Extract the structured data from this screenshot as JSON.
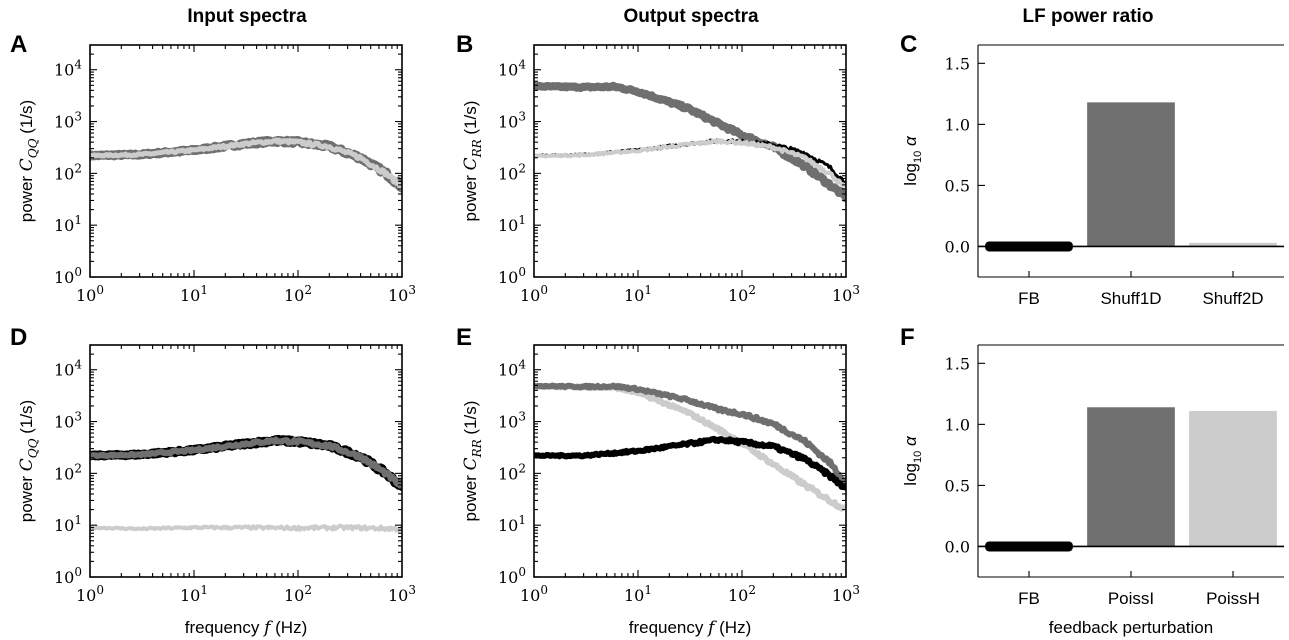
{
  "column_titles": [
    "Input spectra",
    "Output spectra",
    "LF power ratio"
  ],
  "colors": {
    "black": "#000000",
    "dark_gray": "#6f6f6f",
    "light_gray": "#cccccc"
  },
  "chart_data": [
    {
      "panel": "A",
      "type": "line",
      "xscale": "log",
      "yscale": "log",
      "xlim": [
        1,
        1000
      ],
      "ylim": [
        1,
        30000
      ],
      "xticks": [
        "10^0",
        "10^1",
        "10^2",
        "10^3"
      ],
      "yticks": [
        "10^0",
        "10^1",
        "10^2",
        "10^3",
        "10^4"
      ],
      "ylabel": "power C_QQ (1/s)",
      "xlabel": "",
      "series": [
        {
          "color": "#6f6f6f",
          "width": 9,
          "x": [
            1,
            3,
            10,
            30,
            60,
            100,
            200,
            400,
            700,
            1000
          ],
          "y": [
            220,
            230,
            280,
            370,
            420,
            400,
            330,
            200,
            100,
            55
          ]
        },
        {
          "color": "#cccccc",
          "width": 5,
          "x": [
            1,
            3,
            10,
            30,
            60,
            100,
            200,
            400,
            700,
            1000
          ],
          "y": [
            220,
            230,
            280,
            370,
            420,
            400,
            330,
            200,
            100,
            55
          ]
        }
      ]
    },
    {
      "panel": "B",
      "type": "line",
      "xscale": "log",
      "yscale": "log",
      "xlim": [
        1,
        1000
      ],
      "ylim": [
        1,
        30000
      ],
      "xticks": [
        "10^0",
        "10^1",
        "10^2",
        "10^3"
      ],
      "yticks": [
        "10^0",
        "10^1",
        "10^2",
        "10^3",
        "10^4"
      ],
      "ylabel": "power C_RR (1/s)",
      "xlabel": "",
      "series": [
        {
          "color": "#6f6f6f",
          "width": 8,
          "x": [
            1,
            3,
            6,
            10,
            30,
            60,
            100,
            200,
            400,
            700,
            1000
          ],
          "y": [
            4800,
            4600,
            4700,
            3800,
            1800,
            900,
            550,
            320,
            140,
            60,
            35
          ]
        },
        {
          "color": "#000000",
          "width": 3,
          "x": [
            1,
            3,
            10,
            30,
            60,
            100,
            200,
            400,
            700,
            1000
          ],
          "y": [
            220,
            230,
            280,
            370,
            430,
            410,
            360,
            250,
            130,
            65
          ]
        },
        {
          "color": "#cccccc",
          "width": 4,
          "x": [
            1,
            3,
            10,
            30,
            60,
            100,
            200,
            400,
            700,
            1000
          ],
          "y": [
            215,
            225,
            275,
            360,
            420,
            390,
            320,
            200,
            100,
            50
          ]
        }
      ]
    },
    {
      "panel": "C",
      "type": "bar",
      "ylim": [
        -0.25,
        1.65
      ],
      "yticks": [
        0.0,
        0.5,
        1.0,
        1.5
      ],
      "yticklabels": [
        "0.0",
        "0.5",
        "1.0",
        "1.5"
      ],
      "ylabel": "log10 α",
      "xlabel": "",
      "categories": [
        "FB",
        "Shuff1D",
        "Shuff2D"
      ],
      "values": [
        0.0,
        1.18,
        0.03
      ],
      "colors": [
        "#000000",
        "#6f6f6f",
        "#cccccc"
      ]
    },
    {
      "panel": "D",
      "type": "line",
      "xscale": "log",
      "yscale": "log",
      "xlim": [
        1,
        1000
      ],
      "ylim": [
        1,
        30000
      ],
      "xticks": [
        "10^0",
        "10^1",
        "10^2",
        "10^3"
      ],
      "yticks": [
        "10^0",
        "10^1",
        "10^2",
        "10^3",
        "10^4"
      ],
      "ylabel": "power C_QQ (1/s)",
      "xlabel": "frequency f (Hz)",
      "series": [
        {
          "color": "#000000",
          "width": 9,
          "x": [
            1,
            3,
            10,
            30,
            60,
            100,
            200,
            400,
            700,
            1000
          ],
          "y": [
            220,
            230,
            280,
            370,
            430,
            410,
            340,
            210,
            100,
            55
          ]
        },
        {
          "color": "#6f6f6f",
          "width": 6,
          "x": [
            1,
            3,
            10,
            30,
            60,
            100,
            200,
            400,
            700,
            1000
          ],
          "y": [
            220,
            230,
            280,
            370,
            430,
            410,
            340,
            210,
            100,
            55
          ]
        },
        {
          "color": "#cccccc",
          "width": 4,
          "x": [
            1,
            3,
            10,
            30,
            100,
            300,
            1000
          ],
          "y": [
            9,
            8.5,
            9,
            9,
            8.8,
            9,
            8.5
          ]
        }
      ]
    },
    {
      "panel": "E",
      "type": "line",
      "xscale": "log",
      "yscale": "log",
      "xlim": [
        1,
        1000
      ],
      "ylim": [
        1,
        30000
      ],
      "xticks": [
        "10^0",
        "10^1",
        "10^2",
        "10^3"
      ],
      "yticks": [
        "10^0",
        "10^1",
        "10^2",
        "10^3",
        "10^4"
      ],
      "ylabel": "power C_RR (1/s)",
      "xlabel": "frequency f (Hz)",
      "series": [
        {
          "color": "#cccccc",
          "width": 6,
          "x": [
            1,
            3,
            6,
            10,
            30,
            60,
            100,
            200,
            400,
            700,
            1000
          ],
          "y": [
            4800,
            4600,
            4500,
            3600,
            1500,
            700,
            380,
            150,
            60,
            30,
            20
          ]
        },
        {
          "color": "#6f6f6f",
          "width": 6,
          "x": [
            1,
            3,
            6,
            10,
            30,
            60,
            100,
            200,
            400,
            700,
            1000
          ],
          "y": [
            4900,
            4700,
            4800,
            4200,
            2600,
            1700,
            1400,
            900,
            420,
            160,
            65
          ]
        },
        {
          "color": "#000000",
          "width": 6,
          "x": [
            1,
            3,
            10,
            30,
            60,
            100,
            200,
            400,
            700,
            1000
          ],
          "y": [
            220,
            220,
            270,
            370,
            450,
            400,
            330,
            190,
            90,
            50
          ]
        }
      ]
    },
    {
      "panel": "F",
      "type": "bar",
      "ylim": [
        -0.25,
        1.65
      ],
      "yticks": [
        0.0,
        0.5,
        1.0,
        1.5
      ],
      "yticklabels": [
        "0.0",
        "0.5",
        "1.0",
        "1.5"
      ],
      "ylabel": "log10 α",
      "xlabel": "feedback perturbation",
      "categories": [
        "FB",
        "PoissI",
        "PoissH"
      ],
      "values": [
        0.0,
        1.14,
        1.11
      ],
      "colors": [
        "#000000",
        "#6f6f6f",
        "#cccccc"
      ]
    }
  ]
}
